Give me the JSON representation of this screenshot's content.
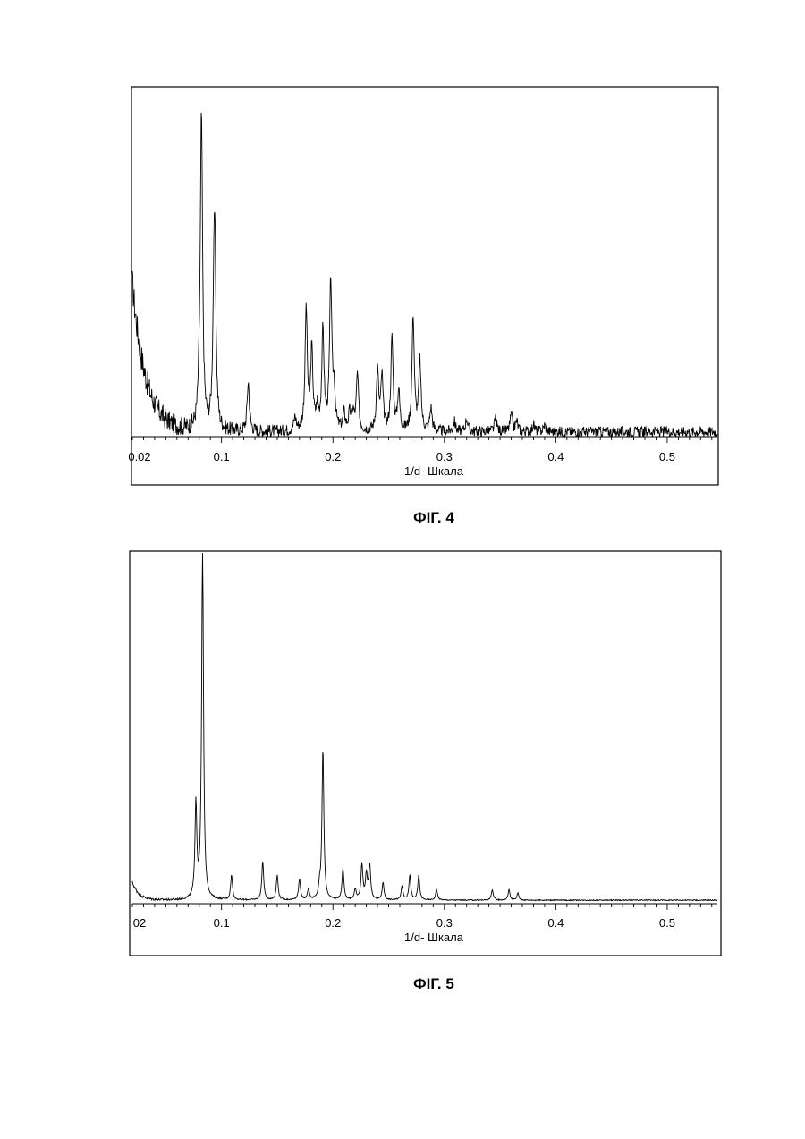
{
  "figures": [
    {
      "caption": "ФІГ. 4",
      "chart_data": {
        "type": "line",
        "xlabel": "1/d- Шкала",
        "ylabel": "",
        "xlim": [
          0.02,
          0.545
        ],
        "ylim": [
          0,
          100
        ],
        "x_ticks": [
          0.1,
          0.2,
          0.3,
          0.4,
          0.5
        ],
        "x_tick_labels": [
          "0.02",
          "0.1",
          "0.2",
          "0.3",
          "0.4",
          "0.5"
        ],
        "grid": false,
        "baseline": 1.5,
        "background": {
          "start": 45,
          "decay": 0.012
        },
        "peak_width": 0.0012,
        "noise": 1.6,
        "peaks": [
          {
            "x": 0.08,
            "y": 6
          },
          {
            "x": 0.082,
            "y": 95
          },
          {
            "x": 0.093,
            "y": 22
          },
          {
            "x": 0.094,
            "y": 52
          },
          {
            "x": 0.124,
            "y": 15
          },
          {
            "x": 0.166,
            "y": 4
          },
          {
            "x": 0.176,
            "y": 37
          },
          {
            "x": 0.181,
            "y": 24
          },
          {
            "x": 0.186,
            "y": 6
          },
          {
            "x": 0.191,
            "y": 30
          },
          {
            "x": 0.198,
            "y": 45
          },
          {
            "x": 0.201,
            "y": 11
          },
          {
            "x": 0.21,
            "y": 5
          },
          {
            "x": 0.215,
            "y": 5
          },
          {
            "x": 0.218,
            "y": 5
          },
          {
            "x": 0.222,
            "y": 17
          },
          {
            "x": 0.24,
            "y": 18
          },
          {
            "x": 0.244,
            "y": 16
          },
          {
            "x": 0.253,
            "y": 28
          },
          {
            "x": 0.259,
            "y": 12
          },
          {
            "x": 0.272,
            "y": 35
          },
          {
            "x": 0.278,
            "y": 21
          },
          {
            "x": 0.288,
            "y": 7
          },
          {
            "x": 0.309,
            "y": 3
          },
          {
            "x": 0.32,
            "y": 4
          },
          {
            "x": 0.346,
            "y": 4
          },
          {
            "x": 0.36,
            "y": 5
          },
          {
            "x": 0.365,
            "y": 3
          },
          {
            "x": 0.38,
            "y": 2
          },
          {
            "x": 0.39,
            "y": 2
          }
        ]
      }
    },
    {
      "caption": "ФІГ. 5",
      "chart_data": {
        "type": "line",
        "xlabel": "1/d- Шкала",
        "ylabel": "",
        "xlim": [
          0.02,
          0.545
        ],
        "ylim": [
          0,
          100
        ],
        "x_ticks": [
          0.1,
          0.2,
          0.3,
          0.4,
          0.5
        ],
        "x_tick_labels": [
          "02",
          "0.1",
          "0.2",
          "0.3",
          "0.4",
          "0.5"
        ],
        "grid": false,
        "baseline": 1,
        "background": {
          "start": 5,
          "decay": 0.006
        },
        "peak_width": 0.001,
        "noise": 0.15,
        "peaks": [
          {
            "x": 0.077,
            "y": 27
          },
          {
            "x": 0.083,
            "y": 100
          },
          {
            "x": 0.109,
            "y": 7
          },
          {
            "x": 0.137,
            "y": 11
          },
          {
            "x": 0.15,
            "y": 7
          },
          {
            "x": 0.17,
            "y": 6
          },
          {
            "x": 0.178,
            "y": 3
          },
          {
            "x": 0.188,
            "y": 3
          },
          {
            "x": 0.191,
            "y": 43
          },
          {
            "x": 0.209,
            "y": 9
          },
          {
            "x": 0.22,
            "y": 3
          },
          {
            "x": 0.226,
            "y": 10
          },
          {
            "x": 0.23,
            "y": 7
          },
          {
            "x": 0.233,
            "y": 10
          },
          {
            "x": 0.245,
            "y": 5
          },
          {
            "x": 0.262,
            "y": 4
          },
          {
            "x": 0.269,
            "y": 7
          },
          {
            "x": 0.277,
            "y": 7
          },
          {
            "x": 0.293,
            "y": 3
          },
          {
            "x": 0.343,
            "y": 3
          },
          {
            "x": 0.358,
            "y": 3
          },
          {
            "x": 0.366,
            "y": 2
          }
        ]
      }
    }
  ]
}
